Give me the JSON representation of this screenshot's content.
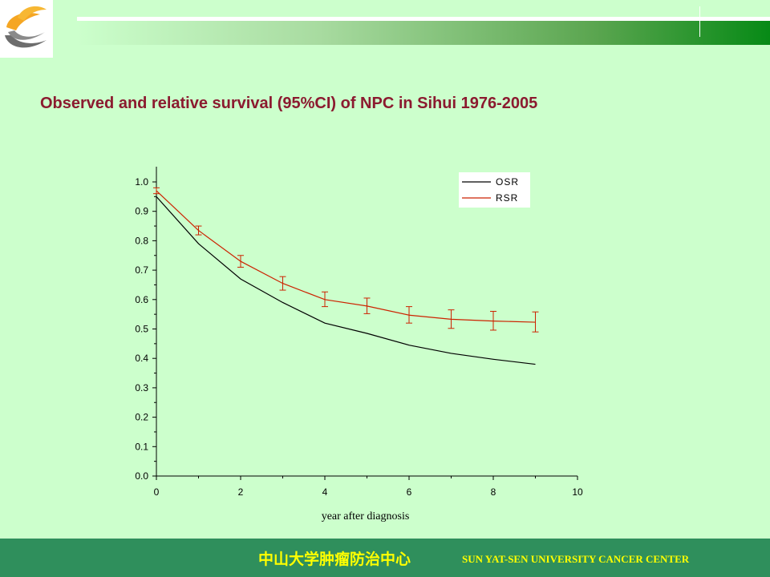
{
  "slide": {
    "title": "Observed and relative survival (95%CI) of NPC in Sihui 1976-2005",
    "footer_cn": "中山大学肿瘤防治中心",
    "footer_en": "SUN YAT-SEN UNIVERSITY CANCER CENTER"
  },
  "colors": {
    "background": "#ccffcc",
    "title": "#8b1a2f",
    "footer_bg": "#2f8f5c",
    "footer_text": "#ffff00",
    "osr_line": "#000000",
    "rsr_line": "#cc2200",
    "logo_orange": "#f5a623",
    "logo_gray": "#6d6d6d"
  },
  "chart_data": {
    "type": "line",
    "title": "",
    "xlabel": "year after diagnosis",
    "ylabel": "",
    "xlim": [
      0,
      10
    ],
    "ylim": [
      0.0,
      1.0
    ],
    "x_ticks": [
      "0",
      "2",
      "4",
      "6",
      "8",
      "10"
    ],
    "y_ticks": [
      "0.0",
      "0.1",
      "0.2",
      "0.3",
      "0.4",
      "0.5",
      "0.6",
      "0.7",
      "0.8",
      "0.9",
      "1.0"
    ],
    "legend_position": "top-right",
    "series": [
      {
        "name": "OSR",
        "color": "#000000",
        "x": [
          0,
          1,
          2,
          3,
          4,
          5,
          6,
          7,
          8,
          9
        ],
        "y": [
          0.95,
          0.79,
          0.67,
          0.59,
          0.52,
          0.485,
          0.445,
          0.417,
          0.397,
          0.38
        ]
      },
      {
        "name": "RSR",
        "color": "#cc2200",
        "x": [
          0,
          1,
          2,
          3,
          4,
          5,
          6,
          7,
          8,
          9
        ],
        "y": [
          0.97,
          0.835,
          0.73,
          0.655,
          0.6,
          0.578,
          0.547,
          0.533,
          0.527,
          0.523
        ],
        "ci_lower": [
          0.96,
          0.82,
          0.71,
          0.632,
          0.576,
          0.552,
          0.52,
          0.502,
          0.496,
          0.49
        ],
        "ci_upper": [
          0.98,
          0.85,
          0.75,
          0.678,
          0.626,
          0.605,
          0.576,
          0.565,
          0.56,
          0.558
        ]
      }
    ]
  }
}
